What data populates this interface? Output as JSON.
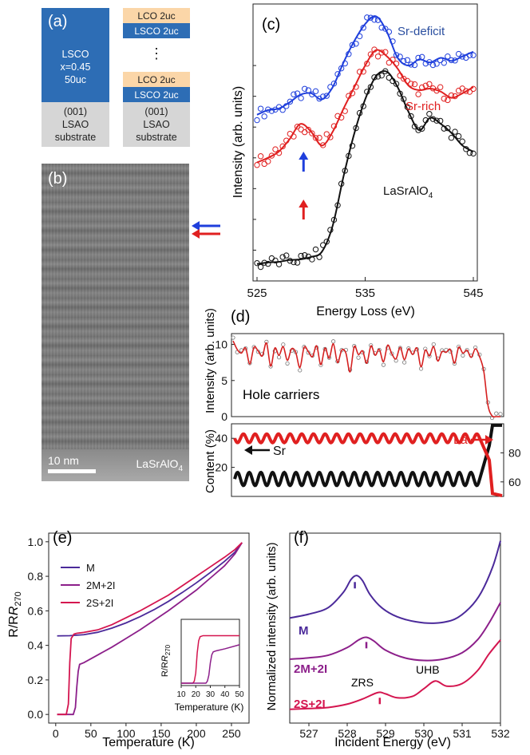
{
  "panels": {
    "a": "(a)",
    "b": "(b)",
    "c": "(c)",
    "d": "(d)",
    "e": "(e)",
    "f": "(f)"
  },
  "colors": {
    "lsco": "#2d6db5",
    "lco": "#fbd6a8",
    "substrate": "#d6d6d6",
    "blue": "#1f3fdc",
    "red": "#e02020",
    "black": "#111111",
    "purple": "#4b2a9a",
    "magenta": "#8c1f8a",
    "crimson": "#d4154f"
  },
  "schematic": {
    "left": {
      "lsco_line1": "LSCO",
      "lsco_line2": "x=0.45",
      "lsco_line3": "50uc",
      "sub_line1": "(001)",
      "sub_line2": "LSAO",
      "sub_line3": "substrate"
    },
    "right": {
      "lco": "LCO 2uc",
      "lsco": "LSCO 2uc",
      "dots": "⋮",
      "sub_line1": "(001)",
      "sub_line2": "LSAO",
      "sub_line3": "substrate"
    }
  },
  "image_b": {
    "scalebar": "10 nm",
    "material_main": "LaSrAlO",
    "material_sub": "4"
  },
  "chart_data": [
    {
      "id": "c",
      "type": "line",
      "xlabel": "Energy Loss (eV)",
      "ylabel": "Intensity (arb. units)",
      "xlim": [
        525,
        545
      ],
      "xticks": [
        525,
        535,
        545
      ],
      "series": [
        {
          "name": "Sr-deficit",
          "color": "#1f3fdc",
          "x": [
            525,
            526,
            527,
            528,
            529,
            530,
            531,
            532,
            533,
            534,
            535,
            536,
            537,
            538,
            539,
            540,
            541,
            542,
            543,
            544,
            545
          ],
          "y": [
            5.4,
            5.55,
            5.6,
            5.8,
            6.05,
            6.1,
            5.9,
            6.3,
            7.1,
            7.8,
            8.35,
            8.6,
            8.1,
            7.25,
            7.0,
            7.2,
            7.1,
            7.25,
            7.15,
            7.3,
            7.45
          ]
        },
        {
          "name": "Sr-rich",
          "color": "#e02020",
          "x": [
            525,
            526,
            527,
            528,
            529,
            530,
            531,
            532,
            533,
            534,
            535,
            536,
            537,
            538,
            539,
            540,
            541,
            542,
            543,
            544,
            545
          ],
          "y": [
            3.85,
            4.0,
            4.2,
            4.6,
            5.1,
            4.85,
            4.4,
            4.85,
            5.6,
            6.3,
            7.0,
            7.5,
            7.3,
            6.9,
            6.35,
            6.2,
            6.25,
            6.15,
            5.95,
            6.1,
            6.3
          ]
        },
        {
          "name": "LaSrAlO",
          "name_sub": "4",
          "color": "#111111",
          "x": [
            525,
            526,
            527,
            528,
            529,
            530,
            531,
            532,
            533,
            534,
            535,
            536,
            537,
            538,
            539,
            540,
            541,
            542,
            543,
            544,
            545
          ],
          "y": [
            0.55,
            0.6,
            0.62,
            0.68,
            0.7,
            0.78,
            0.95,
            1.8,
            3.4,
            4.8,
            5.9,
            6.65,
            6.8,
            6.3,
            5.5,
            4.9,
            5.3,
            5.1,
            4.8,
            4.4,
            4.2
          ]
        }
      ],
      "markers": [
        {
          "x": 529.3,
          "color": "#1f3fdc"
        },
        {
          "x": 529.3,
          "color": "#e02020"
        }
      ]
    },
    {
      "id": "d_top",
      "type": "line",
      "title": "Hole carriers",
      "ylabel": "Intensity (arb. units)",
      "ylim": [
        0,
        11.5
      ],
      "yticks": [
        0,
        5,
        10
      ],
      "series": [
        {
          "name": "",
          "color": "#d52020",
          "y": [
            10.5,
            9.3,
            8.8,
            9.5,
            7.3,
            9.6,
            9.1,
            8.4,
            10.2,
            7.0,
            9.5,
            8.5,
            9.7,
            7.8,
            9.4,
            8.9,
            6.8,
            9.6,
            9.0,
            8.3,
            9.8,
            7.2,
            9.5,
            8.1,
            10.1,
            7.5,
            9.2,
            8.8,
            6.2,
            9.7,
            8.6,
            9.1,
            7.4,
            9.8,
            8.5,
            9.3,
            7.6,
            9.9,
            8.7,
            8.0,
            9.6,
            7.9,
            9.4,
            8.6,
            9.5,
            6.9,
            9.2,
            8.4,
            9.7,
            7.7,
            9.0,
            8.9,
            9.3,
            7.4,
            9.6,
            8.8,
            9.2,
            8.2,
            9.4,
            8.3,
            6.3,
            1.6,
            0.1,
            0.0,
            0.0
          ]
        }
      ]
    },
    {
      "id": "d_bottom",
      "type": "line",
      "ylabel": "Content (%)",
      "ylim": [
        0,
        50
      ],
      "yticks": [
        20,
        40
      ],
      "y2lim": [
        50,
        100
      ],
      "y2ticks": [
        60,
        80
      ],
      "series": [
        {
          "name": "Sr",
          "color": "#111111",
          "mean": 12,
          "amp": 4.5,
          "periods": 21
        },
        {
          "name": "La",
          "color": "#e02020",
          "mean": 40,
          "amp": 3,
          "periods": 21
        }
      ]
    },
    {
      "id": "e",
      "type": "line",
      "xlabel": "Temperature (K)",
      "ylabel": "R/R",
      "ylabel_sub": "270",
      "xlim": [
        -10,
        275
      ],
      "ylim": [
        -0.05,
        1.05
      ],
      "xticks": [
        0,
        50,
        100,
        150,
        200,
        250
      ],
      "yticks": [
        0.0,
        0.2,
        0.4,
        0.6,
        0.8,
        1.0
      ],
      "series": [
        {
          "name": "M",
          "color": "#4b2a9a",
          "x": [
            2,
            20,
            40,
            60,
            80,
            100,
            120,
            140,
            160,
            180,
            200,
            220,
            240,
            255,
            265
          ],
          "y": [
            0.455,
            0.456,
            0.462,
            0.476,
            0.5,
            0.53,
            0.566,
            0.607,
            0.654,
            0.706,
            0.762,
            0.822,
            0.886,
            0.94,
            0.995
          ]
        },
        {
          "name": "2M+2I",
          "color": "#8c1f8a",
          "x": [
            2,
            25,
            28,
            30,
            32,
            34,
            40,
            60,
            80,
            100,
            120,
            140,
            160,
            180,
            200,
            220,
            240,
            255,
            265
          ],
          "y": [
            0,
            0,
            0.04,
            0.16,
            0.25,
            0.29,
            0.3,
            0.345,
            0.39,
            0.44,
            0.49,
            0.545,
            0.6,
            0.66,
            0.72,
            0.79,
            0.86,
            0.93,
            0.995
          ]
        },
        {
          "name": "2S+2I",
          "color": "#d4154f",
          "x": [
            2,
            15,
            18,
            20,
            22,
            26,
            30,
            40,
            60,
            80,
            100,
            120,
            140,
            160,
            180,
            200,
            220,
            240,
            255,
            265
          ],
          "y": [
            0,
            0,
            0.06,
            0.3,
            0.44,
            0.465,
            0.47,
            0.475,
            0.49,
            0.52,
            0.56,
            0.6,
            0.645,
            0.69,
            0.745,
            0.8,
            0.855,
            0.91,
            0.955,
            0.995
          ]
        }
      ],
      "inset": {
        "xlabel": "Temperature (K)",
        "ylabel": "R/R",
        "ylabel_sub": "270",
        "xlim": [
          10,
          50
        ],
        "xticks": [
          10,
          20,
          30,
          40,
          50
        ],
        "ylim": [
          0,
          0.6
        ],
        "series": [
          {
            "name": "2S+2I",
            "color": "#d4154f",
            "x": [
              10,
              18,
              19,
              20,
              21,
              22,
              23,
              25,
              30,
              40,
              50
            ],
            "y": [
              0,
              0,
              0.02,
              0.1,
              0.3,
              0.42,
              0.46,
              0.47,
              0.47,
              0.47,
              0.47
            ]
          },
          {
            "name": "2M+2I",
            "color": "#8c1f8a",
            "x": [
              10,
              27,
              28,
              29,
              30,
              31,
              32,
              34,
              40,
              50
            ],
            "y": [
              0,
              0,
              0.02,
              0.08,
              0.2,
              0.28,
              0.31,
              0.32,
              0.34,
              0.38
            ]
          }
        ]
      }
    },
    {
      "id": "f",
      "type": "line",
      "xlabel": "Incident Energy (eV)",
      "ylabel": "Normalized intensity (arb. units)",
      "xlim": [
        526.5,
        532
      ],
      "xticks": [
        527,
        528,
        529,
        530,
        531,
        532
      ],
      "series": [
        {
          "name": "M",
          "color": "#4b2a9a",
          "x": [
            526.5,
            527,
            527.5,
            527.9,
            528.1,
            528.25,
            528.4,
            528.6,
            528.9,
            529.3,
            529.8,
            530.3,
            530.8,
            531.2,
            531.5,
            531.8,
            532
          ],
          "y": [
            3.9,
            4.05,
            4.3,
            4.9,
            5.4,
            5.55,
            5.35,
            4.8,
            4.3,
            3.95,
            3.75,
            3.7,
            3.85,
            4.3,
            4.9,
            5.9,
            6.9
          ]
        },
        {
          "name": "2M+2I",
          "color": "#8c1f8a",
          "x": [
            526.5,
            527,
            527.5,
            528,
            528.3,
            528.5,
            528.7,
            529,
            529.5,
            530,
            530.5,
            531,
            531.4,
            531.7,
            532
          ],
          "y": [
            2.3,
            2.35,
            2.45,
            2.75,
            3.05,
            3.15,
            3.0,
            2.65,
            2.35,
            2.25,
            2.3,
            2.55,
            3.05,
            3.7,
            4.5
          ]
        },
        {
          "name": "2S+2I",
          "color": "#d4154f",
          "x": [
            526.5,
            527,
            527.5,
            528,
            528.4,
            528.8,
            529.0,
            529.3,
            529.7,
            530.0,
            530.3,
            530.6,
            531.0,
            531.4,
            531.7,
            532
          ],
          "y": [
            0.35,
            0.38,
            0.42,
            0.55,
            0.75,
            1.0,
            0.95,
            0.8,
            0.85,
            1.15,
            1.45,
            1.25,
            1.35,
            1.85,
            2.5,
            3.05
          ]
        }
      ],
      "annotations": {
        "zrs": "ZRS",
        "uhb": "UHB"
      },
      "ticks_marks": [
        528.2,
        528.5,
        528.85
      ]
    }
  ]
}
